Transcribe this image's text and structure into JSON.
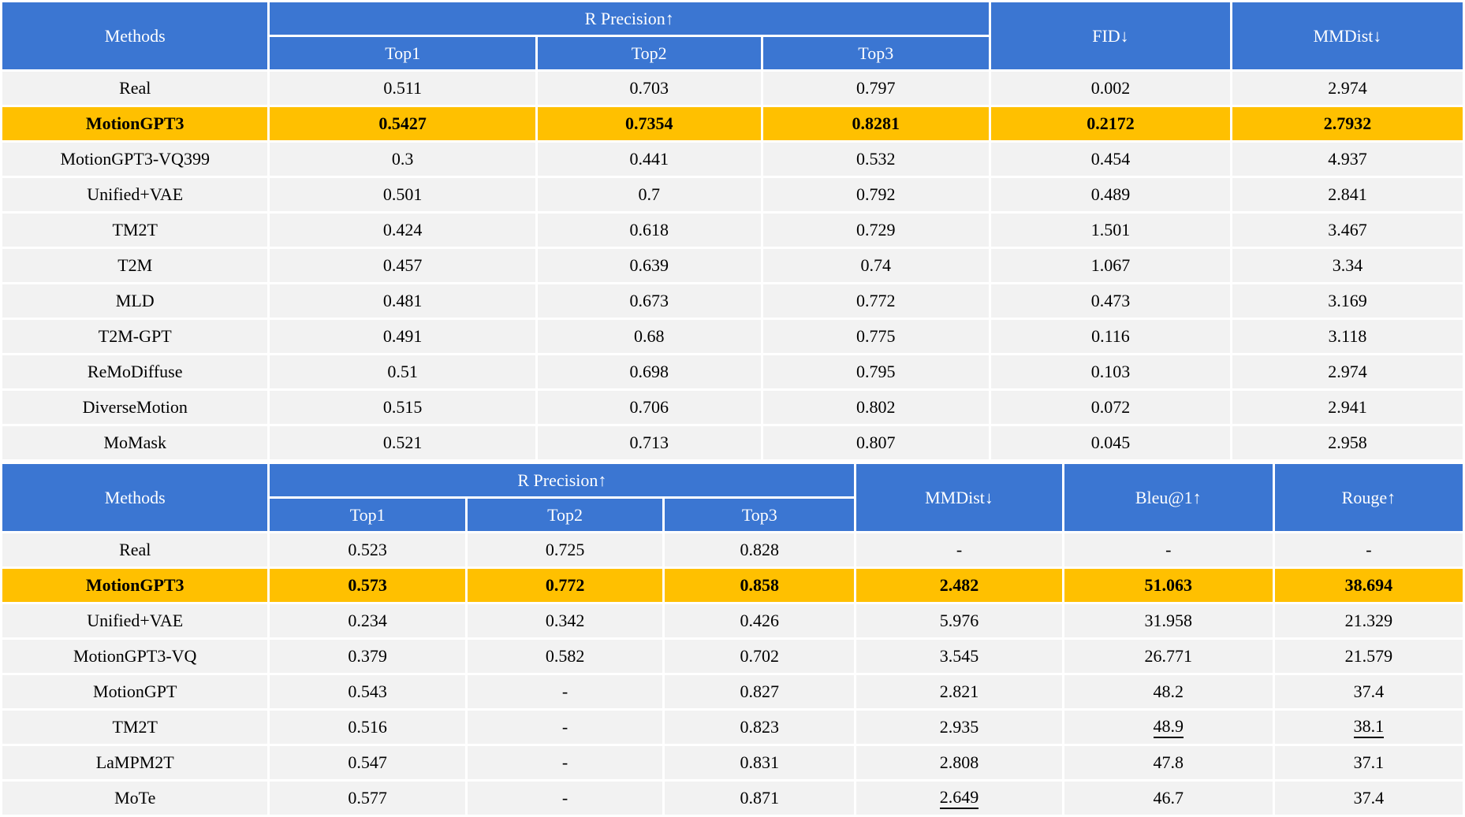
{
  "colors": {
    "header_blue": "#3B76D2",
    "highlight_gold": "#FFC000",
    "row_gray": "#F2F2F2",
    "header_text": "#FFFFFF",
    "body_text": "#000000"
  },
  "tables": [
    {
      "title": "text-to-motion-results",
      "header": {
        "methods_label": "Methods",
        "group_label": "R Precision↑",
        "sub_labels": [
          "Top1",
          "Top2",
          "Top3"
        ],
        "metric_labels": [
          "FID↓",
          "MMDist↓"
        ]
      },
      "rows": [
        {
          "method": "Real",
          "values": [
            "0.511",
            "0.703",
            "0.797",
            "0.002",
            "2.974"
          ],
          "highlight": false
        },
        {
          "method": "MotionGPT3",
          "values": [
            "0.5427",
            "0.7354",
            "0.8281",
            "0.2172",
            "2.7932"
          ],
          "highlight": true
        },
        {
          "method": "MotionGPT3-VQ399",
          "values": [
            "0.3",
            "0.441",
            "0.532",
            "0.454",
            "4.937"
          ],
          "highlight": false
        },
        {
          "method": "Unified+VAE",
          "values": [
            "0.501",
            "0.7",
            "0.792",
            "0.489",
            "2.841"
          ],
          "highlight": false
        },
        {
          "method": "TM2T",
          "values": [
            "0.424",
            "0.618",
            "0.729",
            "1.501",
            "3.467"
          ],
          "highlight": false
        },
        {
          "method": "T2M",
          "values": [
            "0.457",
            "0.639",
            "0.74",
            "1.067",
            "3.34"
          ],
          "highlight": false
        },
        {
          "method": "MLD",
          "values": [
            "0.481",
            "0.673",
            "0.772",
            "0.473",
            "3.169"
          ],
          "highlight": false
        },
        {
          "method": "T2M-GPT",
          "values": [
            "0.491",
            "0.68",
            "0.775",
            "0.116",
            "3.118"
          ],
          "highlight": false
        },
        {
          "method": "ReMoDiffuse",
          "values": [
            "0.51",
            "0.698",
            "0.795",
            "0.103",
            "2.974"
          ],
          "highlight": false
        },
        {
          "method": "DiverseMotion",
          "values": [
            "0.515",
            "0.706",
            "0.802",
            "0.072",
            "2.941"
          ],
          "highlight": false
        },
        {
          "method": "MoMask",
          "values": [
            "0.521",
            "0.713",
            "0.807",
            "0.045",
            "2.958"
          ],
          "highlight": false
        }
      ]
    },
    {
      "title": "motion-to-text-results",
      "header": {
        "methods_label": "Methods",
        "group_label": "R Precision↑",
        "sub_labels": [
          "Top1",
          "Top2",
          "Top3"
        ],
        "metric_labels": [
          "MMDist↓",
          "Bleu@1↑",
          "Rouge↑"
        ]
      },
      "rows": [
        {
          "method": "Real",
          "values": [
            "0.523",
            "0.725",
            "0.828",
            "-",
            "-",
            "-"
          ],
          "highlight": false
        },
        {
          "method": "MotionGPT3",
          "values": [
            "0.573",
            "0.772",
            "0.858",
            "2.482",
            "51.063",
            "38.694"
          ],
          "highlight": true
        },
        {
          "method": "Unified+VAE",
          "values": [
            "0.234",
            "0.342",
            "0.426",
            "5.976",
            "31.958",
            "21.329"
          ],
          "highlight": false
        },
        {
          "method": "MotionGPT3-VQ",
          "values": [
            "0.379",
            "0.582",
            "0.702",
            "3.545",
            "26.771",
            "21.579"
          ],
          "highlight": false
        },
        {
          "method": "MotionGPT",
          "values": [
            "0.543",
            "-",
            "0.827",
            "2.821",
            "48.2",
            "37.4"
          ],
          "highlight": false
        },
        {
          "method": "TM2T",
          "values": [
            "0.516",
            "-",
            "0.823",
            "2.935",
            "48.9",
            "38.1"
          ],
          "highlight": false,
          "underline": [
            4,
            5
          ]
        },
        {
          "method": "LaMPM2T",
          "values": [
            "0.547",
            "-",
            "0.831",
            "2.808",
            "47.8",
            "37.1"
          ],
          "highlight": false
        },
        {
          "method": "MoTe",
          "values": [
            "0.577",
            "-",
            "0.871",
            "2.649",
            "46.7",
            "37.4"
          ],
          "highlight": false,
          "underline": [
            3
          ]
        }
      ]
    }
  ]
}
